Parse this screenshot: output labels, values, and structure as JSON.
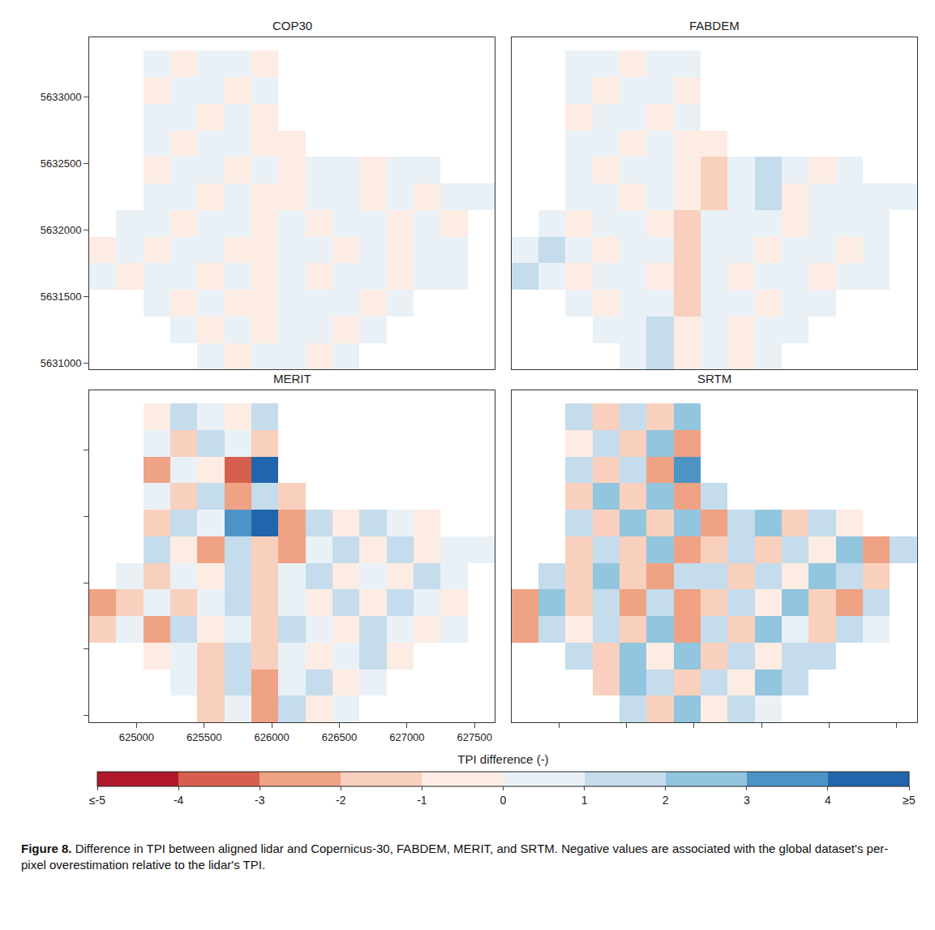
{
  "chart_data": [
    {
      "type": "heatmap",
      "title": "COP30",
      "tick_labels": "y",
      "grid": false,
      "xlim": [
        624650,
        627650
      ],
      "ylim": [
        5630950,
        5633450
      ],
      "xticks": [
        625000,
        625500,
        626000,
        626500,
        627000,
        627500
      ],
      "yticks": [
        5631000,
        5631500,
        5632000,
        5632500,
        5633000
      ],
      "x": [
        624750,
        624950,
        625150,
        625350,
        625550,
        625750,
        625950,
        626150,
        626350,
        626550,
        626750,
        626950,
        627150,
        627350,
        627550
      ],
      "y": [
        5631050,
        5631250,
        5631450,
        5631650,
        5631850,
        5632050,
        5632250,
        5632450,
        5632650,
        5632850,
        5633050,
        5633250
      ],
      "z": [
        [
          null,
          null,
          null,
          null,
          0.2,
          -0.3,
          0.4,
          0.1,
          -0.2,
          0.1,
          null,
          null,
          null,
          null,
          null
        ],
        [
          null,
          null,
          null,
          0.3,
          -0.2,
          0.5,
          -0.4,
          0.2,
          0.1,
          -0.1,
          0.2,
          null,
          null,
          null,
          null
        ],
        [
          null,
          null,
          0.2,
          -0.1,
          0.3,
          -0.2,
          -0.6,
          0.3,
          0.1,
          0.2,
          -0.3,
          0.1,
          null,
          null,
          null
        ],
        [
          0.3,
          -0.2,
          0.1,
          0.2,
          -0.1,
          0.4,
          -0.7,
          0.2,
          -0.1,
          0.3,
          0.1,
          -0.2,
          0.2,
          0.1,
          null
        ],
        [
          -0.2,
          0.3,
          -0.1,
          0.1,
          0.2,
          -0.3,
          -0.8,
          0.1,
          0.2,
          -0.1,
          0.3,
          -0.4,
          0.1,
          0.2,
          null
        ],
        [
          null,
          0.2,
          0.1,
          -0.2,
          0.3,
          0.1,
          -0.6,
          0.2,
          -0.1,
          0.2,
          0.1,
          -0.3,
          0.2,
          -0.1,
          null
        ],
        [
          null,
          null,
          0.1,
          0.2,
          -0.1,
          0.2,
          -0.5,
          -0.3,
          0.2,
          0.1,
          -0.2,
          0.3,
          -0.4,
          0.1,
          0.2
        ],
        [
          null,
          null,
          -0.1,
          0.2,
          0.1,
          -0.2,
          0.3,
          -0.6,
          0.1,
          0.2,
          -0.1,
          0.2,
          0.1,
          null,
          null
        ],
        [
          null,
          null,
          0.2,
          -0.1,
          0.1,
          0.2,
          -0.3,
          -0.4,
          null,
          null,
          null,
          null,
          null,
          null,
          null
        ],
        [
          null,
          null,
          0.1,
          0.2,
          -0.2,
          0.1,
          -0.4,
          null,
          null,
          null,
          null,
          null,
          null,
          null,
          null
        ],
        [
          null,
          null,
          -0.1,
          0.1,
          0.2,
          -0.1,
          0.2,
          null,
          null,
          null,
          null,
          null,
          null,
          null,
          null
        ],
        [
          null,
          null,
          0.2,
          -0.2,
          0.1,
          0.3,
          -0.1,
          null,
          null,
          null,
          null,
          null,
          null,
          null,
          null
        ]
      ]
    },
    {
      "type": "heatmap",
      "title": "FABDEM",
      "tick_labels": false,
      "grid": false,
      "xlim": [
        624650,
        627650
      ],
      "ylim": [
        5630950,
        5633450
      ],
      "xticks": [
        625000,
        625500,
        626000,
        626500,
        627000,
        627500
      ],
      "yticks": [
        5631000,
        5631500,
        5632000,
        5632500,
        5633000
      ],
      "x": [
        624750,
        624950,
        625150,
        625350,
        625550,
        625750,
        625950,
        626150,
        626350,
        626550,
        626750,
        626950,
        627150,
        627350,
        627550
      ],
      "y": [
        5631050,
        5631250,
        5631450,
        5631650,
        5631850,
        5632050,
        5632250,
        5632450,
        5632650,
        5632850,
        5633050,
        5633250
      ],
      "z": [
        [
          null,
          null,
          null,
          null,
          0.6,
          1.3,
          -0.2,
          0.3,
          -0.4,
          0.2,
          null,
          null,
          null,
          null,
          null
        ],
        [
          null,
          null,
          null,
          0.4,
          0.8,
          1.6,
          -0.9,
          0.5,
          -0.2,
          0.6,
          0.3,
          null,
          null,
          null,
          null
        ],
        [
          null,
          null,
          0.7,
          -0.3,
          0.5,
          0.9,
          -1.2,
          0.2,
          0.4,
          -0.3,
          0.5,
          0.2,
          null,
          null,
          null
        ],
        [
          1.1,
          0.6,
          -0.4,
          0.3,
          0.2,
          -0.5,
          -1.4,
          0.6,
          -0.2,
          0.4,
          0.3,
          -0.6,
          0.5,
          0.3,
          null
        ],
        [
          0.8,
          1.2,
          0.3,
          -0.2,
          0.4,
          0.2,
          -1.3,
          0.3,
          0.5,
          -0.4,
          0.2,
          0.6,
          -0.3,
          0.4,
          null
        ],
        [
          null,
          0.5,
          -0.6,
          0.4,
          0.3,
          -0.2,
          -1.1,
          0.4,
          0.2,
          0.6,
          -0.3,
          0.4,
          0.2,
          0.5,
          null
        ],
        [
          null,
          null,
          0.3,
          0.2,
          -0.4,
          0.5,
          -0.7,
          -1.2,
          0.4,
          1.3,
          -0.8,
          0.3,
          0.5,
          0.2,
          0.4
        ],
        [
          null,
          null,
          0.4,
          -0.3,
          0.6,
          0.2,
          -0.5,
          -1.5,
          0.3,
          1.1,
          0.4,
          -0.2,
          0.3,
          null,
          null
        ],
        [
          null,
          null,
          0.2,
          0.5,
          -0.3,
          0.3,
          -0.6,
          -1.0,
          null,
          null,
          null,
          null,
          null,
          null,
          null
        ],
        [
          null,
          null,
          -0.2,
          0.3,
          0.4,
          -0.4,
          0.6,
          null,
          null,
          null,
          null,
          null,
          null,
          null,
          null
        ],
        [
          null,
          null,
          0.3,
          -0.2,
          0.2,
          0.5,
          -0.3,
          null,
          null,
          null,
          null,
          null,
          null,
          null,
          null
        ],
        [
          null,
          null,
          0.2,
          0.4,
          -0.1,
          0.2,
          0.3,
          null,
          null,
          null,
          null,
          null,
          null,
          null,
          null
        ]
      ]
    },
    {
      "type": "heatmap",
      "title": "MERIT",
      "tick_labels": "x",
      "grid": false,
      "xlim": [
        624650,
        627650
      ],
      "ylim": [
        5630950,
        5633450
      ],
      "xticks": [
        625000,
        625500,
        626000,
        626500,
        627000,
        627500
      ],
      "yticks": [
        5631000,
        5631500,
        5632000,
        5632500,
        5633000
      ],
      "x": [
        624750,
        624950,
        625150,
        625350,
        625550,
        625750,
        625950,
        626150,
        626350,
        626550,
        626750,
        626950,
        627150,
        627350,
        627550
      ],
      "y": [
        5631050,
        5631250,
        5631450,
        5631650,
        5631850,
        5632050,
        5632250,
        5632450,
        5632650,
        5632850,
        5633050,
        5633250
      ],
      "z": [
        [
          null,
          null,
          null,
          null,
          -1.8,
          0.9,
          -2.1,
          1.2,
          -0.8,
          0.5,
          null,
          null,
          null,
          null,
          null
        ],
        [
          null,
          null,
          null,
          0.9,
          -1.2,
          1.5,
          -2.4,
          0.8,
          1.1,
          -0.6,
          0.7,
          null,
          null,
          null,
          null
        ],
        [
          null,
          null,
          -0.8,
          0.6,
          -1.1,
          1.3,
          -1.9,
          0.5,
          -0.4,
          0.9,
          1.2,
          -0.5,
          null,
          null,
          null
        ],
        [
          -1.6,
          0.4,
          -2.2,
          1.4,
          -0.9,
          0.7,
          -1.7,
          1.1,
          0.6,
          -0.7,
          1.3,
          0.8,
          -0.6,
          0.9,
          null
        ],
        [
          -2.3,
          -1.5,
          0.8,
          -1.2,
          0.6,
          1.4,
          -2.0,
          0.9,
          -0.5,
          1.2,
          -0.8,
          1.5,
          0.7,
          -0.4,
          null
        ],
        [
          null,
          0.7,
          -1.3,
          0.9,
          -0.6,
          1.1,
          -1.8,
          0.6,
          1.0,
          -0.9,
          0.8,
          -0.6,
          1.3,
          0.5,
          null
        ],
        [
          null,
          null,
          1.2,
          -0.7,
          -2.6,
          1.6,
          -1.4,
          -2.2,
          0.8,
          1.4,
          -0.7,
          1.0,
          -0.5,
          0.9,
          0.6
        ],
        [
          null,
          null,
          -1.9,
          1.3,
          0.8,
          3.8,
          4.4,
          -2.5,
          1.2,
          -0.6,
          1.1,
          0.7,
          -0.8,
          null,
          null
        ],
        [
          null,
          null,
          0.6,
          -1.1,
          1.5,
          -2.3,
          1.9,
          -1.6,
          null,
          null,
          null,
          null,
          null,
          null,
          null
        ],
        [
          null,
          null,
          -2.1,
          0.9,
          -0.7,
          -3.2,
          4.6,
          null,
          null,
          null,
          null,
          null,
          null,
          null,
          null
        ],
        [
          null,
          null,
          0.8,
          -1.4,
          1.2,
          0.6,
          -1.8,
          null,
          null,
          null,
          null,
          null,
          null,
          null,
          null
        ],
        [
          null,
          null,
          -0.6,
          1.1,
          0.4,
          -0.9,
          1.3,
          null,
          null,
          null,
          null,
          null,
          null,
          null,
          null
        ]
      ]
    },
    {
      "type": "heatmap",
      "title": "SRTM",
      "tick_labels": false,
      "grid": false,
      "xlim": [
        624650,
        627650
      ],
      "ylim": [
        5630950,
        5633450
      ],
      "xticks": [
        625000,
        625500,
        626000,
        626500,
        627000,
        627500
      ],
      "yticks": [
        5631000,
        5631500,
        5632000,
        5632500,
        5633000
      ],
      "x": [
        624750,
        624950,
        625150,
        625350,
        625550,
        625750,
        625950,
        626150,
        626350,
        626550,
        626750,
        626950,
        627150,
        627350,
        627550
      ],
      "y": [
        5631050,
        5631250,
        5631450,
        5631650,
        5631850,
        5632050,
        5632250,
        5632450,
        5632650,
        5632850,
        5633050,
        5633250
      ],
      "z": [
        [
          null,
          null,
          null,
          null,
          1.9,
          -1.2,
          2.4,
          -0.8,
          1.6,
          0.9,
          null,
          null,
          null,
          null,
          null
        ],
        [
          null,
          null,
          null,
          -1.4,
          2.6,
          1.1,
          -2.0,
          1.8,
          -0.9,
          2.2,
          1.3,
          null,
          null,
          null,
          null
        ],
        [
          null,
          null,
          1.7,
          -1.6,
          2.1,
          -0.7,
          2.8,
          -1.3,
          1.5,
          -0.6,
          1.9,
          1.2,
          null,
          null,
          null
        ],
        [
          -2.8,
          1.5,
          -0.9,
          1.8,
          -1.5,
          2.3,
          -2.2,
          1.4,
          -1.1,
          2.0,
          0.8,
          -1.7,
          1.6,
          0.9,
          null
        ],
        [
          -2.4,
          2.1,
          -1.3,
          1.2,
          -2.1,
          1.7,
          -2.6,
          -1.8,
          1.3,
          -0.8,
          2.4,
          -1.2,
          -2.3,
          1.1,
          null
        ],
        [
          null,
          1.4,
          -1.7,
          2.0,
          -1.2,
          -2.4,
          1.9,
          1.6,
          -1.4,
          1.8,
          -0.9,
          2.2,
          1.0,
          -1.3,
          null
        ],
        [
          null,
          null,
          -1.1,
          1.6,
          -1.8,
          2.5,
          -2.3,
          -1.7,
          1.9,
          -1.2,
          1.4,
          -0.8,
          2.1,
          -2.5,
          1.3
        ],
        [
          null,
          null,
          1.8,
          -1.4,
          2.2,
          -1.9,
          2.6,
          -2.2,
          1.5,
          2.3,
          -1.1,
          1.7,
          -0.9,
          null,
          null
        ],
        [
          null,
          null,
          -1.3,
          2.0,
          -1.6,
          2.4,
          -2.9,
          1.8,
          null,
          null,
          null,
          null,
          null,
          null,
          null
        ],
        [
          null,
          null,
          1.6,
          -1.2,
          1.9,
          -2.1,
          3.1,
          null,
          null,
          null,
          null,
          null,
          null,
          null,
          null
        ],
        [
          null,
          null,
          -0.9,
          1.7,
          -1.4,
          2.2,
          -2.7,
          null,
          null,
          null,
          null,
          null,
          null,
          null,
          null
        ],
        [
          null,
          null,
          1.2,
          -1.5,
          1.8,
          -1.9,
          2.8,
          null,
          null,
          null,
          null,
          null,
          null,
          null,
          null
        ]
      ]
    }
  ],
  "colorbar": {
    "title": "TPI difference (-)",
    "range": [
      -5,
      5
    ],
    "ticks": [
      {
        "value": -5,
        "label": "≤-5"
      },
      -4,
      -3,
      -2,
      -1,
      0,
      1,
      2,
      3,
      4,
      {
        "value": 5,
        "label": "≥5"
      }
    ],
    "colors": [
      "#b2182b",
      "#d6604d",
      "#f0a285",
      "#f9d0bd",
      "#fdece3",
      "#e9f1f6",
      "#c4dcec",
      "#92c5de",
      "#4d94c6",
      "#2166ac"
    ]
  },
  "caption": {
    "label": "Figure 8.",
    "text": "Difference in TPI between aligned lidar and Copernicus-30, FABDEM, MERIT, and SRTM. Negative values are associated with the global dataset's per-pixel overestimation relative to the lidar's TPI."
  }
}
